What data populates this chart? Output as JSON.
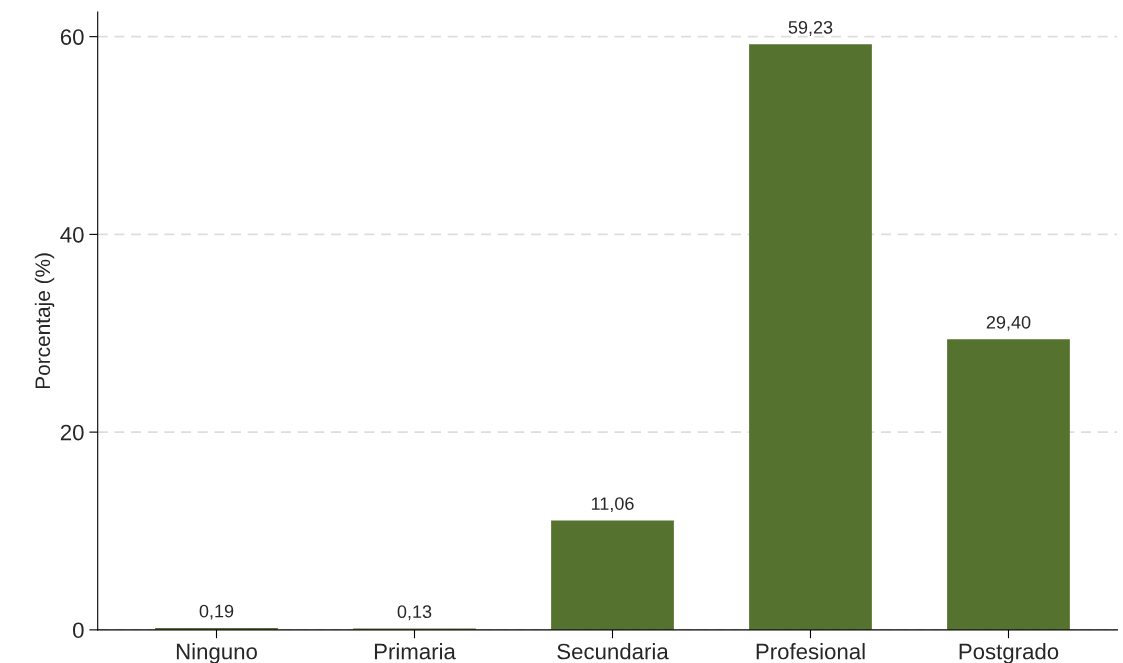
{
  "chart_data": {
    "type": "bar",
    "ylabel": "Porcentaje (%)",
    "categories": [
      "Ninguno",
      "Primaria",
      "Secundaria",
      "Profesional",
      "Postgrado"
    ],
    "values": [
      0.19,
      0.13,
      11.06,
      59.23,
      29.4
    ],
    "value_labels": [
      "0,19",
      "0,13",
      "11,06",
      "59,23",
      "29,40"
    ],
    "color": "#56722f",
    "ylim": [
      0,
      62.5
    ],
    "yticks": [
      0,
      20,
      40,
      60
    ],
    "grid": "y"
  }
}
